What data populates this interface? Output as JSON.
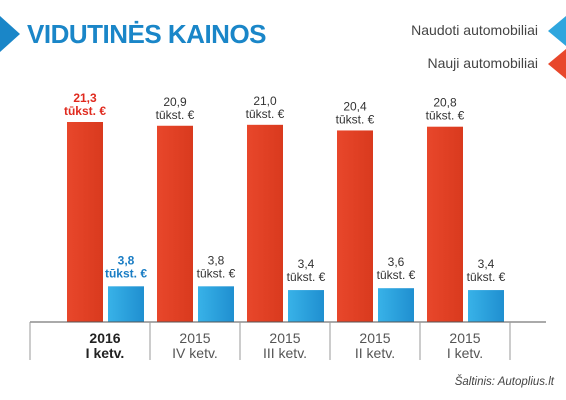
{
  "title": "VIDUTINĖS KAINOS",
  "legend": [
    {
      "label": "Naudoti automobiliai",
      "color": "#2fa6de"
    },
    {
      "label": "Nauji automobiliai",
      "color": "#e8472b"
    }
  ],
  "source": "Šaltinis: Autoplius.lt",
  "colors": {
    "title": "#1a86c8",
    "new": "#e8472b",
    "used": "#2fa6de",
    "highlight_new": "#e02a1e",
    "highlight_used": "#1a7dc4",
    "axis": "#555555"
  },
  "chart_data": {
    "type": "bar",
    "categories": [
      {
        "year": "2016",
        "quarter": "I ketv.",
        "highlight": true
      },
      {
        "year": "2015",
        "quarter": "IV ketv.",
        "highlight": false
      },
      {
        "year": "2015",
        "quarter": "III ketv.",
        "highlight": false
      },
      {
        "year": "2015",
        "quarter": "II ketv.",
        "highlight": false
      },
      {
        "year": "2015",
        "quarter": "I ketv.",
        "highlight": false
      }
    ],
    "series": [
      {
        "name": "Nauji automobiliai",
        "values": [
          21.3,
          20.9,
          21.0,
          20.4,
          20.8
        ],
        "labels": [
          "21,3",
          "20,9",
          "21,0",
          "20,4",
          "20,8"
        ]
      },
      {
        "name": "Naudoti automobiliai",
        "values": [
          3.8,
          3.8,
          3.4,
          3.6,
          3.4
        ],
        "labels": [
          "3,8",
          "3,8",
          "3,4",
          "3,6",
          "3,4"
        ]
      }
    ],
    "unit": "tūkst. €",
    "ylim": [
      0,
      21.3
    ],
    "grid": false
  }
}
